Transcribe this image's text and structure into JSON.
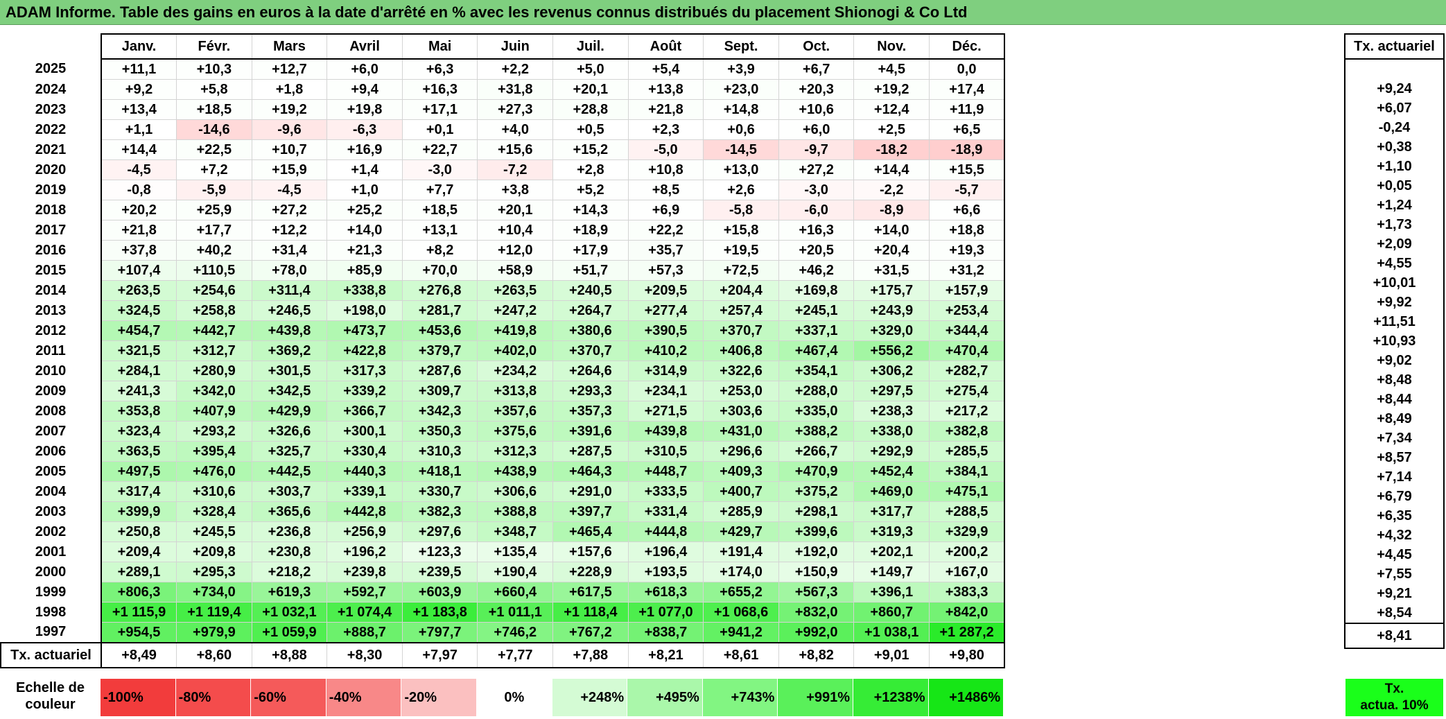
{
  "title": "ADAM Informe. Table des gains en euros à la date d'arrêté en % avec les revenus connus distribués du placement Shionogi & Co Ltd",
  "months": [
    "Janv.",
    "Févr.",
    "Mars",
    "Avril",
    "Mai",
    "Juin",
    "Juil.",
    "Août",
    "Sept.",
    "Oct.",
    "Nov.",
    "Déc."
  ],
  "right_header": "Tx. actuariel",
  "rows": [
    {
      "year": "2025",
      "values": [
        "+11,1",
        "+10,3",
        "+12,7",
        "+6,0",
        "+6,3",
        "+2,2",
        "+5,0",
        "+5,4",
        "+3,9",
        "+6,7",
        "+4,5",
        "0,0"
      ],
      "rate": ""
    },
    {
      "year": "2024",
      "values": [
        "+9,2",
        "+5,8",
        "+1,8",
        "+9,4",
        "+16,3",
        "+31,8",
        "+20,1",
        "+13,8",
        "+23,0",
        "+20,3",
        "+19,2",
        "+17,4"
      ],
      "rate": "+9,24"
    },
    {
      "year": "2023",
      "values": [
        "+13,4",
        "+18,5",
        "+19,2",
        "+19,8",
        "+17,1",
        "+27,3",
        "+28,8",
        "+21,8",
        "+14,8",
        "+10,6",
        "+12,4",
        "+11,9"
      ],
      "rate": "+6,07"
    },
    {
      "year": "2022",
      "values": [
        "+1,1",
        "-14,6",
        "-9,6",
        "-6,3",
        "+0,1",
        "+4,0",
        "+0,5",
        "+2,3",
        "+0,6",
        "+6,0",
        "+2,5",
        "+6,5"
      ],
      "rate": "-0,24"
    },
    {
      "year": "2021",
      "values": [
        "+14,4",
        "+22,5",
        "+10,7",
        "+16,9",
        "+22,7",
        "+15,6",
        "+15,2",
        "-5,0",
        "-14,5",
        "-9,7",
        "-18,2",
        "-18,9"
      ],
      "rate": "+0,38"
    },
    {
      "year": "2020",
      "values": [
        "-4,5",
        "+7,2",
        "+15,9",
        "+1,4",
        "-3,0",
        "-7,2",
        "+2,8",
        "+10,8",
        "+13,0",
        "+27,2",
        "+14,4",
        "+15,5"
      ],
      "rate": "+1,10"
    },
    {
      "year": "2019",
      "values": [
        "-0,8",
        "-5,9",
        "-4,5",
        "+1,0",
        "+7,7",
        "+3,8",
        "+5,2",
        "+8,5",
        "+2,6",
        "-3,0",
        "-2,2",
        "-5,7"
      ],
      "rate": "+0,05"
    },
    {
      "year": "2018",
      "values": [
        "+20,2",
        "+25,9",
        "+27,2",
        "+25,2",
        "+18,5",
        "+20,1",
        "+14,3",
        "+6,9",
        "-5,8",
        "-6,0",
        "-8,9",
        "+6,6"
      ],
      "rate": "+1,24"
    },
    {
      "year": "2017",
      "values": [
        "+21,8",
        "+17,7",
        "+12,2",
        "+14,0",
        "+13,1",
        "+10,4",
        "+18,9",
        "+22,2",
        "+15,8",
        "+16,3",
        "+14,0",
        "+18,8"
      ],
      "rate": "+1,73"
    },
    {
      "year": "2016",
      "values": [
        "+37,8",
        "+40,2",
        "+31,4",
        "+21,3",
        "+8,2",
        "+12,0",
        "+17,9",
        "+35,7",
        "+19,5",
        "+20,5",
        "+20,4",
        "+19,3"
      ],
      "rate": "+2,09"
    },
    {
      "year": "2015",
      "values": [
        "+107,4",
        "+110,5",
        "+78,0",
        "+85,9",
        "+70,0",
        "+58,9",
        "+51,7",
        "+57,3",
        "+72,5",
        "+46,2",
        "+31,5",
        "+31,2"
      ],
      "rate": "+4,55"
    },
    {
      "year": "2014",
      "values": [
        "+263,5",
        "+254,6",
        "+311,4",
        "+338,8",
        "+276,8",
        "+263,5",
        "+240,5",
        "+209,5",
        "+204,4",
        "+169,8",
        "+175,7",
        "+157,9"
      ],
      "rate": "+10,01"
    },
    {
      "year": "2013",
      "values": [
        "+324,5",
        "+258,8",
        "+246,5",
        "+198,0",
        "+281,7",
        "+247,2",
        "+264,7",
        "+277,4",
        "+257,4",
        "+245,1",
        "+243,9",
        "+253,4"
      ],
      "rate": "+9,92"
    },
    {
      "year": "2012",
      "values": [
        "+454,7",
        "+442,7",
        "+439,8",
        "+473,7",
        "+453,6",
        "+419,8",
        "+380,6",
        "+390,5",
        "+370,7",
        "+337,1",
        "+329,0",
        "+344,4"
      ],
      "rate": "+11,51"
    },
    {
      "year": "2011",
      "values": [
        "+321,5",
        "+312,7",
        "+369,2",
        "+422,8",
        "+379,7",
        "+402,0",
        "+370,7",
        "+410,2",
        "+406,8",
        "+467,4",
        "+556,2",
        "+470,4"
      ],
      "rate": "+10,93"
    },
    {
      "year": "2010",
      "values": [
        "+284,1",
        "+280,9",
        "+301,5",
        "+317,3",
        "+287,6",
        "+234,2",
        "+264,6",
        "+314,9",
        "+322,6",
        "+354,1",
        "+306,2",
        "+282,7"
      ],
      "rate": "+9,02"
    },
    {
      "year": "2009",
      "values": [
        "+241,3",
        "+342,0",
        "+342,5",
        "+339,2",
        "+309,7",
        "+313,8",
        "+293,3",
        "+234,1",
        "+253,0",
        "+288,0",
        "+297,5",
        "+275,4"
      ],
      "rate": "+8,48"
    },
    {
      "year": "2008",
      "values": [
        "+353,8",
        "+407,9",
        "+429,9",
        "+366,7",
        "+342,3",
        "+357,6",
        "+357,3",
        "+271,5",
        "+303,6",
        "+335,0",
        "+238,3",
        "+217,2"
      ],
      "rate": "+8,44"
    },
    {
      "year": "2007",
      "values": [
        "+323,4",
        "+293,2",
        "+326,6",
        "+300,1",
        "+350,3",
        "+375,6",
        "+391,6",
        "+439,8",
        "+431,0",
        "+388,2",
        "+338,0",
        "+382,8"
      ],
      "rate": "+8,49"
    },
    {
      "year": "2006",
      "values": [
        "+363,5",
        "+395,4",
        "+325,7",
        "+330,4",
        "+310,3",
        "+312,3",
        "+287,5",
        "+310,5",
        "+296,6",
        "+266,7",
        "+292,9",
        "+285,5"
      ],
      "rate": "+7,34"
    },
    {
      "year": "2005",
      "values": [
        "+497,5",
        "+476,0",
        "+442,5",
        "+440,3",
        "+418,1",
        "+438,9",
        "+464,3",
        "+448,7",
        "+409,3",
        "+470,9",
        "+452,4",
        "+384,1"
      ],
      "rate": "+8,57"
    },
    {
      "year": "2004",
      "values": [
        "+317,4",
        "+310,6",
        "+303,7",
        "+339,1",
        "+330,7",
        "+306,6",
        "+291,0",
        "+333,5",
        "+400,7",
        "+375,2",
        "+469,0",
        "+475,1"
      ],
      "rate": "+7,14"
    },
    {
      "year": "2003",
      "values": [
        "+399,9",
        "+328,4",
        "+365,6",
        "+442,8",
        "+382,3",
        "+388,8",
        "+397,7",
        "+331,4",
        "+285,9",
        "+298,1",
        "+317,7",
        "+288,5"
      ],
      "rate": "+6,79"
    },
    {
      "year": "2002",
      "values": [
        "+250,8",
        "+245,5",
        "+236,8",
        "+256,9",
        "+297,6",
        "+348,7",
        "+465,4",
        "+444,8",
        "+429,7",
        "+399,6",
        "+319,3",
        "+329,9"
      ],
      "rate": "+6,35"
    },
    {
      "year": "2001",
      "values": [
        "+209,4",
        "+209,8",
        "+230,8",
        "+196,2",
        "+123,3",
        "+135,4",
        "+157,6",
        "+196,4",
        "+191,4",
        "+192,0",
        "+202,1",
        "+200,2"
      ],
      "rate": "+4,32"
    },
    {
      "year": "2000",
      "values": [
        "+289,1",
        "+295,3",
        "+218,2",
        "+239,8",
        "+239,5",
        "+190,4",
        "+228,9",
        "+193,5",
        "+174,0",
        "+150,9",
        "+149,7",
        "+167,0"
      ],
      "rate": "+4,45"
    },
    {
      "year": "1999",
      "values": [
        "+806,3",
        "+734,0",
        "+619,3",
        "+592,7",
        "+603,9",
        "+660,4",
        "+617,5",
        "+618,3",
        "+655,2",
        "+567,3",
        "+396,1",
        "+383,3"
      ],
      "rate": "+7,55"
    },
    {
      "year": "1998",
      "values": [
        "+1 115,9",
        "+1 119,4",
        "+1 032,1",
        "+1 074,4",
        "+1 183,8",
        "+1 011,1",
        "+1 118,4",
        "+1 077,0",
        "+1 068,6",
        "+832,0",
        "+860,7",
        "+842,0"
      ],
      "rate": "+9,21"
    },
    {
      "year": "1997",
      "values": [
        "+954,5",
        "+979,9",
        "+1 059,9",
        "+888,7",
        "+797,7",
        "+746,2",
        "+767,2",
        "+838,7",
        "+941,2",
        "+992,0",
        "+1 038,1",
        "+1 287,2"
      ],
      "rate": "+8,54"
    }
  ],
  "footer": {
    "label": "Tx. actuariel",
    "values": [
      "+8,49",
      "+8,60",
      "+8,88",
      "+8,30",
      "+7,97",
      "+7,77",
      "+7,88",
      "+8,21",
      "+8,61",
      "+8,82",
      "+9,01",
      "+9,80"
    ],
    "rate": "+8,41"
  },
  "legend": {
    "label_line1": "Echelle de",
    "label_line2": "couleur",
    "swatches": [
      {
        "text": "-100%",
        "color": "#f23c3c",
        "kind": "neg"
      },
      {
        "text": "-80%",
        "color": "#f44c4c",
        "kind": "neg"
      },
      {
        "text": "-60%",
        "color": "#f55a5a",
        "kind": "neg"
      },
      {
        "text": "-40%",
        "color": "#f88888",
        "kind": "neg"
      },
      {
        "text": "-20%",
        "color": "#fbc0c0",
        "kind": "neg"
      },
      {
        "text": "0%",
        "color": "#ffffff",
        "kind": "zero"
      },
      {
        "text": "+248%",
        "color": "#d4fbd4",
        "kind": "pos"
      },
      {
        "text": "+495%",
        "color": "#aaf7aa",
        "kind": "pos"
      },
      {
        "text": "+743%",
        "color": "#82f582",
        "kind": "pos"
      },
      {
        "text": "+991%",
        "color": "#5af05a",
        "kind": "pos"
      },
      {
        "text": "+1238%",
        "color": "#36ec36",
        "kind": "pos"
      },
      {
        "text": "+1486%",
        "color": "#16e616",
        "kind": "pos"
      }
    ],
    "right_line1": "Tx.",
    "right_line2": "actua. 10%"
  }
}
